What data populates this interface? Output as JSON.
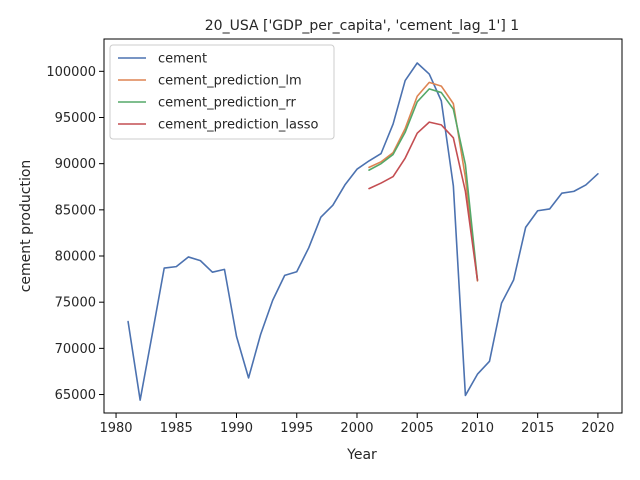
{
  "chart_data": {
    "type": "line",
    "title": "20_USA ['GDP_per_capita', 'cement_lag_1'] 1",
    "xlabel": "Year",
    "ylabel": "cement production",
    "xlim": [
      1979.0,
      2022.0
    ],
    "ylim": [
      63000,
      103500
    ],
    "xticks": [
      1980,
      1985,
      1990,
      1995,
      2000,
      2005,
      2010,
      2015,
      2020
    ],
    "yticks": [
      65000,
      70000,
      75000,
      80000,
      85000,
      90000,
      95000,
      100000
    ],
    "grid": false,
    "legend_position": "top-left",
    "series": [
      {
        "name": "cement",
        "color": "#4c72b0",
        "x": [
          1981,
          1982,
          1983,
          1984,
          1985,
          1986,
          1987,
          1988,
          1989,
          1990,
          1991,
          1992,
          1993,
          1994,
          1995,
          1996,
          1997,
          1998,
          1999,
          2000,
          2001,
          2002,
          2003,
          2004,
          2005,
          2006,
          2007,
          2008,
          2009,
          2010,
          2011,
          2012,
          2013,
          2014,
          2015,
          2016,
          2017,
          2018,
          2019,
          2020
        ],
        "y": [
          72900,
          64400,
          71500,
          78700,
          78850,
          79900,
          79500,
          78250,
          78550,
          71300,
          66800,
          71500,
          75200,
          77900,
          78300,
          80900,
          84200,
          85500,
          87700,
          89400,
          90300,
          91100,
          94300,
          99000,
          100900,
          99700,
          96800,
          87600,
          64900,
          67200,
          68600,
          74900,
          77400,
          83100,
          84900,
          85100,
          86800,
          87000,
          87700,
          88900
        ]
      },
      {
        "name": "cement_prediction_lm",
        "color": "#dd8452",
        "x": [
          2001,
          2002,
          2003,
          2004,
          2005,
          2006,
          2007,
          2008,
          2009,
          2010
        ],
        "y": [
          89600,
          90200,
          91200,
          93800,
          97300,
          98800,
          98400,
          96500,
          88500,
          77300
        ]
      },
      {
        "name": "cement_prediction_rr",
        "color": "#55a868",
        "x": [
          2001,
          2002,
          2003,
          2004,
          2005,
          2006,
          2007,
          2008,
          2009,
          2010
        ],
        "y": [
          89300,
          90000,
          91000,
          93400,
          96700,
          98100,
          97700,
          95900,
          89900,
          77400
        ]
      },
      {
        "name": "cement_prediction_lasso",
        "color": "#c44e52",
        "x": [
          2001,
          2002,
          2003,
          2004,
          2005,
          2006,
          2007,
          2008,
          2009,
          2010
        ],
        "y": [
          87300,
          87900,
          88600,
          90600,
          93300,
          94500,
          94200,
          92800,
          87000,
          77400
        ]
      }
    ]
  }
}
